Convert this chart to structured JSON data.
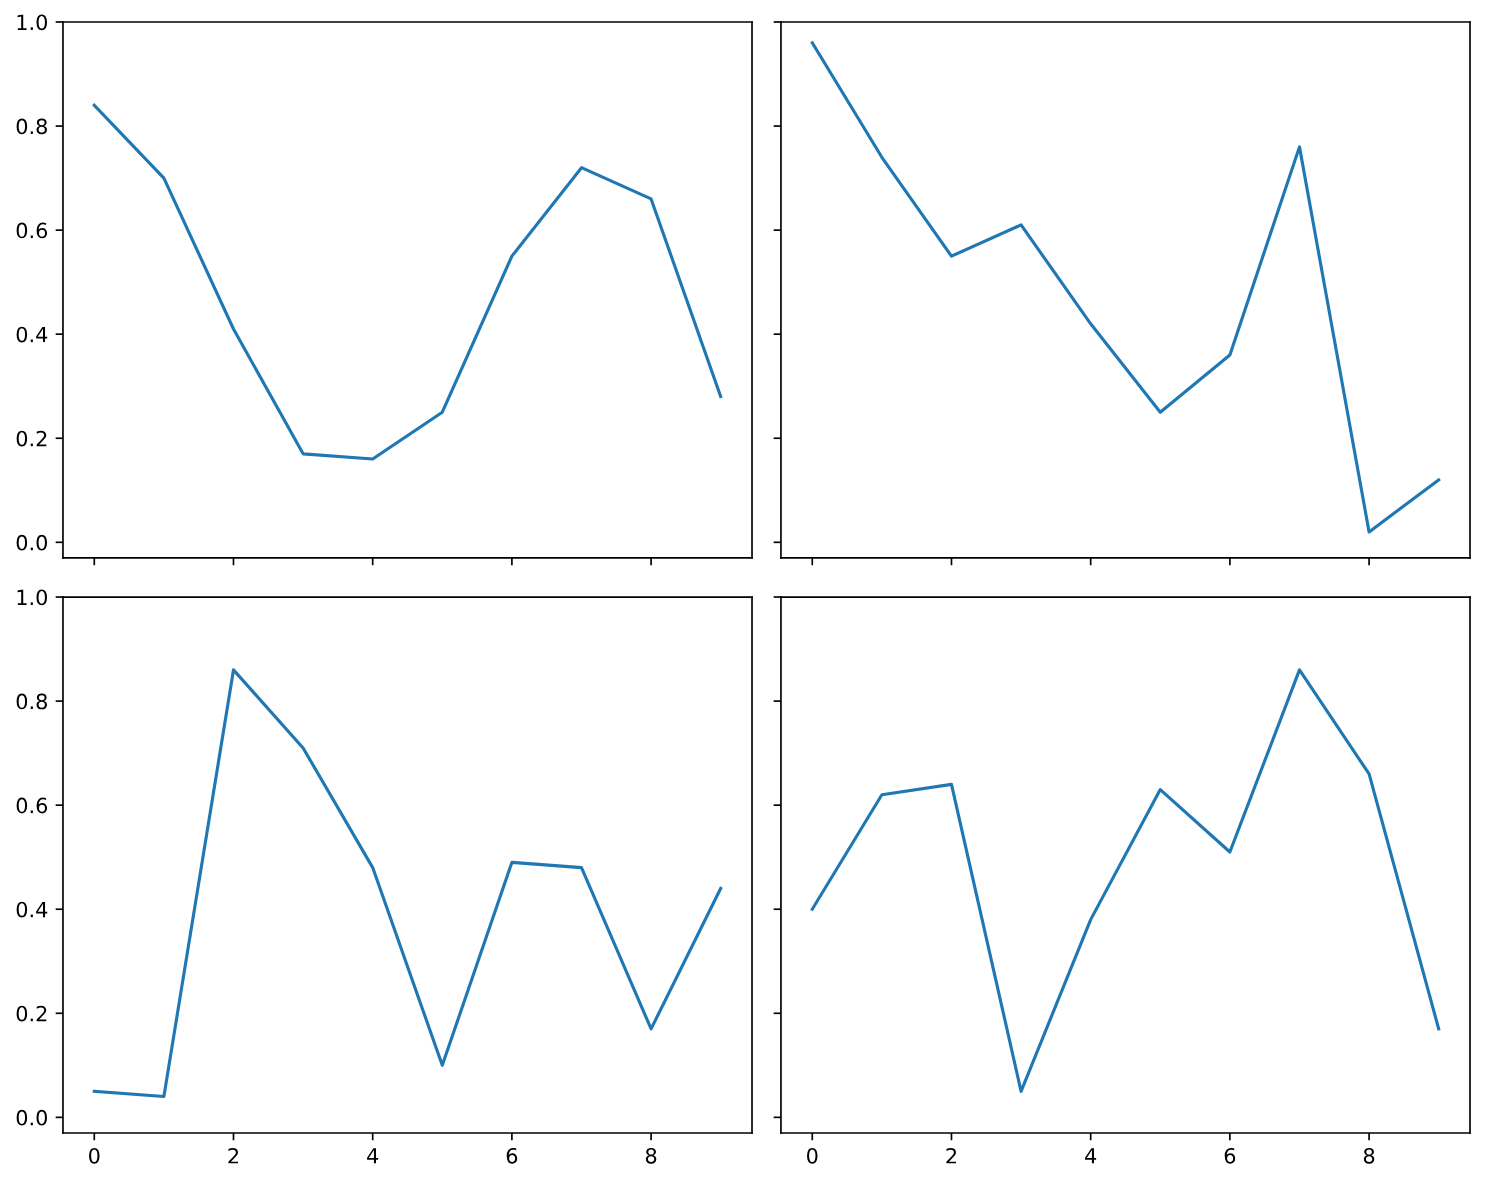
{
  "chart_data": [
    {
      "type": "line",
      "x": [
        0,
        1,
        2,
        3,
        4,
        5,
        6,
        7,
        8,
        9
      ],
      "values": [
        0.84,
        0.7,
        0.41,
        0.17,
        0.16,
        0.25,
        0.55,
        0.72,
        0.66,
        0.28
      ],
      "color": "#1f77b4",
      "xlim": [
        -0.45,
        9.45
      ],
      "xticks": [
        0,
        2,
        4,
        6,
        8
      ],
      "ylim": [
        -0.03,
        1.0
      ],
      "yticks": [
        {
          "value": 0,
          "label": "0.0"
        },
        {
          "value": 0.2,
          "label": "0.2"
        },
        {
          "value": 0.4,
          "label": "0.4"
        },
        {
          "value": 0.6,
          "label": "0.6"
        },
        {
          "value": 0.8,
          "label": "0.8"
        },
        {
          "value": 1.0,
          "label": "1.0"
        }
      ],
      "tick_labels": "y"
    },
    {
      "type": "line",
      "x": [
        0,
        1,
        2,
        3,
        4,
        5,
        6,
        7,
        8,
        9
      ],
      "values": [
        0.96,
        0.74,
        0.55,
        0.61,
        0.42,
        0.25,
        0.36,
        0.76,
        0.02,
        0.12
      ],
      "color": "#1f77b4",
      "xlim": [
        -0.45,
        9.45
      ],
      "xticks": [
        0,
        2,
        4,
        6,
        8
      ],
      "ylim": [
        -0.03,
        1.0
      ],
      "yticks": [
        0,
        0.2,
        0.4,
        0.6,
        0.8,
        1.0
      ],
      "tick_labels": false
    },
    {
      "type": "line",
      "x": [
        0,
        1,
        2,
        3,
        4,
        5,
        6,
        7,
        8,
        9
      ],
      "values": [
        0.05,
        0.04,
        0.86,
        0.71,
        0.48,
        0.1,
        0.49,
        0.48,
        0.17,
        0.44
      ],
      "color": "#1f77b4",
      "xlim": [
        -0.45,
        9.45
      ],
      "xticks": [
        0,
        2,
        4,
        6,
        8
      ],
      "ylim": [
        -0.03,
        1.0
      ],
      "yticks": [
        {
          "value": 0,
          "label": "0.0"
        },
        {
          "value": 0.2,
          "label": "0.2"
        },
        {
          "value": 0.4,
          "label": "0.4"
        },
        {
          "value": 0.6,
          "label": "0.6"
        },
        {
          "value": 0.8,
          "label": "0.8"
        },
        {
          "value": 1.0,
          "label": "1.0"
        }
      ]
    },
    {
      "type": "line",
      "x": [
        0,
        1,
        2,
        3,
        4,
        5,
        6,
        7,
        8,
        9
      ],
      "values": [
        0.4,
        0.62,
        0.64,
        0.05,
        0.38,
        0.63,
        0.51,
        0.86,
        0.66,
        0.17
      ],
      "color": "#1f77b4",
      "xlim": [
        -0.45,
        9.45
      ],
      "xticks": [
        0,
        2,
        4,
        6,
        8
      ],
      "ylim": [
        -0.03,
        1.0
      ],
      "yticks": [
        0,
        0.2,
        0.4,
        0.6,
        0.8,
        1.0
      ],
      "tick_labels": "x"
    }
  ]
}
